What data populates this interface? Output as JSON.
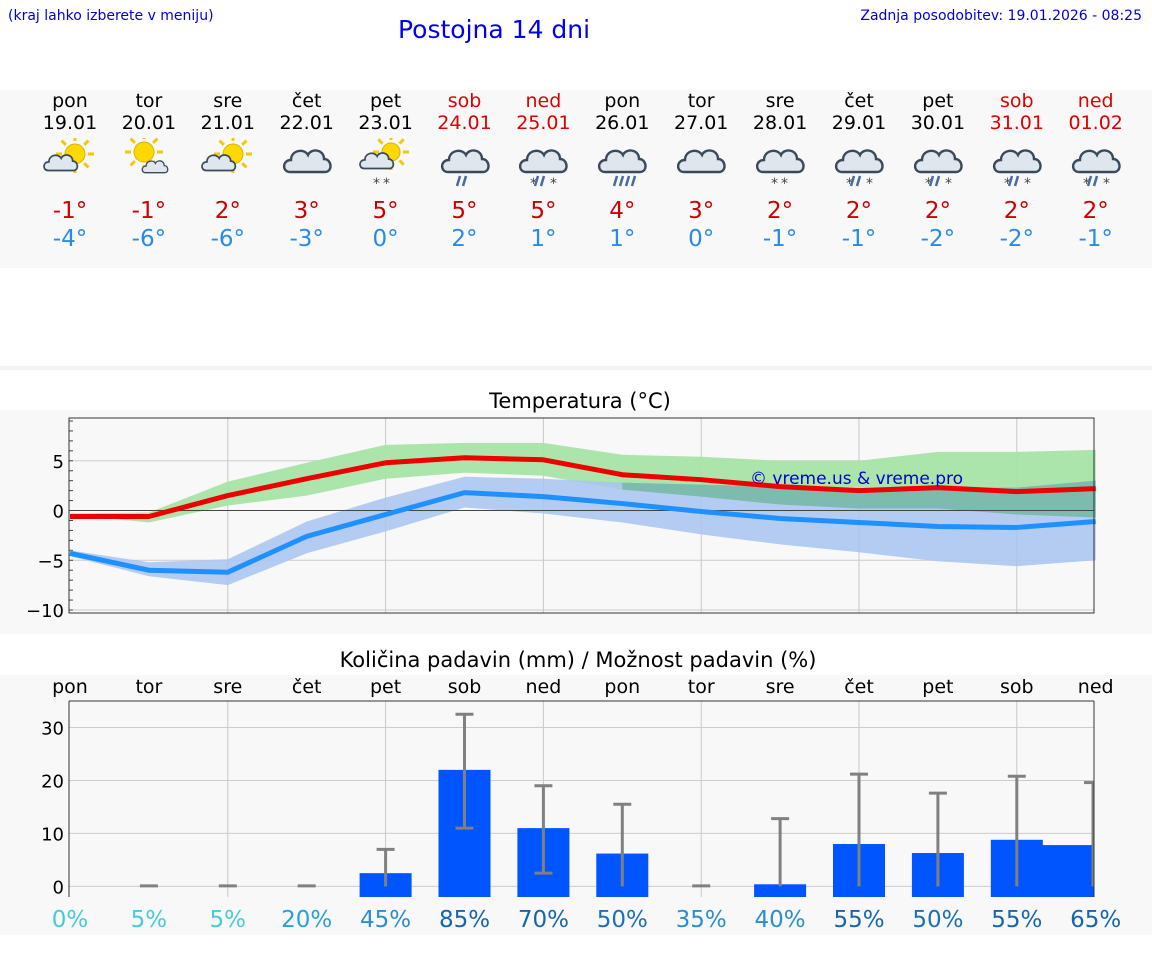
{
  "header": {
    "hint": "(kraj lahko izberete v meniju)",
    "title": "Postojna 14 dni",
    "updated": "Zadnja posodobitev: 19.01.2026 - 08:25"
  },
  "days": [
    {
      "name": "pon",
      "date": "19.01",
      "weekend": false,
      "icon": "sun-cloud-icon",
      "tmax": "-1°",
      "tmin": "-4°"
    },
    {
      "name": "tor",
      "date": "20.01",
      "weekend": false,
      "icon": "sun-small-cloud-icon",
      "tmax": "-1°",
      "tmin": "-6°"
    },
    {
      "name": "sre",
      "date": "21.01",
      "weekend": false,
      "icon": "sun-cloud-icon",
      "tmax": "2°",
      "tmin": "-6°"
    },
    {
      "name": "čet",
      "date": "22.01",
      "weekend": false,
      "icon": "cloudy-icon",
      "tmax": "3°",
      "tmin": "-3°"
    },
    {
      "name": "pet",
      "date": "23.01",
      "weekend": false,
      "icon": "sun-cloud-snow-icon",
      "tmax": "5°",
      "tmin": "0°"
    },
    {
      "name": "sob",
      "date": "24.01",
      "weekend": true,
      "icon": "cloud-rain-icon",
      "tmax": "5°",
      "tmin": "2°"
    },
    {
      "name": "ned",
      "date": "25.01",
      "weekend": true,
      "icon": "cloud-sleet-icon",
      "tmax": "5°",
      "tmin": "1°"
    },
    {
      "name": "pon",
      "date": "26.01",
      "weekend": false,
      "icon": "cloud-heavy-rain-icon",
      "tmax": "4°",
      "tmin": "1°"
    },
    {
      "name": "tor",
      "date": "27.01",
      "weekend": false,
      "icon": "cloudy-icon",
      "tmax": "3°",
      "tmin": "0°"
    },
    {
      "name": "sre",
      "date": "28.01",
      "weekend": false,
      "icon": "cloud-snow-icon",
      "tmax": "2°",
      "tmin": "-1°"
    },
    {
      "name": "čet",
      "date": "29.01",
      "weekend": false,
      "icon": "cloud-sleet-icon",
      "tmax": "2°",
      "tmin": "-1°"
    },
    {
      "name": "pet",
      "date": "30.01",
      "weekend": false,
      "icon": "cloud-sleet-icon",
      "tmax": "2°",
      "tmin": "-2°"
    },
    {
      "name": "sob",
      "date": "31.01",
      "weekend": true,
      "icon": "cloud-sleet-icon",
      "tmax": "2°",
      "tmin": "-2°"
    },
    {
      "name": "ned",
      "date": "01.02",
      "weekend": true,
      "icon": "cloud-sleet-icon",
      "tmax": "2°",
      "tmin": "-1°"
    }
  ],
  "colors": {
    "max_line": "#ee0000",
    "min_line": "#1e90ff",
    "max_band": "#a8e4a8",
    "min_band": "#a8c4f0",
    "overlap_band": "#70b8a0",
    "bar": "#0055ff",
    "error": "#808080",
    "title": "#0000ee",
    "watermark": "#0000cc"
  },
  "chart_data": [
    {
      "type": "line",
      "title": "Temperatura (°C)",
      "xlabel": "",
      "ylabel": "",
      "categories": [
        "19.01",
        "20.01",
        "21.01",
        "22.01",
        "23.01",
        "24.01",
        "25.01",
        "26.01",
        "27.01",
        "28.01",
        "29.01",
        "30.01",
        "31.01",
        "01.02"
      ],
      "ylim": [
        -10.3,
        9.3
      ],
      "yticks": [
        5,
        0,
        -5,
        -10
      ],
      "ytick_labels": [
        "5",
        "0",
        "−5",
        "−10"
      ],
      "grid": true,
      "watermark": "© vreme.us & vreme.pro",
      "series": [
        {
          "name": "max",
          "values": [
            -0.6,
            -0.6,
            1.5,
            3.2,
            4.8,
            5.3,
            5.1,
            3.6,
            3.1,
            2.4,
            2.0,
            2.3,
            1.9,
            2.2
          ],
          "band_low": [
            -0.4,
            -1.2,
            0.5,
            1.5,
            3.2,
            3.8,
            3.5,
            2.1,
            1.4,
            0.6,
            0.2,
            0.2,
            -0.4,
            -0.7
          ],
          "band_high": [
            -0.3,
            -0.2,
            2.9,
            4.8,
            6.6,
            6.8,
            6.8,
            5.6,
            5.4,
            5.0,
            5.0,
            5.9,
            5.9,
            6.1
          ]
        },
        {
          "name": "min",
          "values": [
            -4.3,
            -6.0,
            -6.2,
            -2.6,
            -0.4,
            1.8,
            1.4,
            0.7,
            -0.1,
            -0.8,
            -1.2,
            -1.6,
            -1.7,
            -1.1
          ],
          "band_low": [
            -4.6,
            -6.6,
            -7.5,
            -4.3,
            -2.1,
            0.3,
            -0.3,
            -1.2,
            -2.4,
            -3.4,
            -4.2,
            -5.1,
            -5.6,
            -5.0
          ],
          "band_high": [
            -4.0,
            -5.2,
            -4.9,
            -1.1,
            1.3,
            3.4,
            3.2,
            2.8,
            2.6,
            2.4,
            2.2,
            2.3,
            2.3,
            3.0
          ]
        }
      ]
    },
    {
      "type": "bar",
      "title": "Količina padavin (mm) / Možnost padavin (%)",
      "xlabel": "",
      "ylabel": "",
      "categories": [
        "pon",
        "tor",
        "sre",
        "čet",
        "pet",
        "sob",
        "ned",
        "pon",
        "tor",
        "sre",
        "čet",
        "pet",
        "sob",
        "ned"
      ],
      "ylim": [
        -2,
        35
      ],
      "yticks": [
        30,
        20,
        10,
        0
      ],
      "ytick_labels": [
        "30",
        "20",
        "10",
        "0"
      ],
      "grid": true,
      "values": [
        0,
        0,
        0,
        0,
        2.5,
        22.0,
        11.0,
        6.2,
        0,
        0.4,
        8.0,
        6.3,
        8.8,
        7.8
      ],
      "error_low": [
        0,
        0,
        0,
        0,
        0,
        11.0,
        2.5,
        0,
        0,
        0,
        0,
        0,
        0,
        0
      ],
      "error_high": [
        0,
        0.1,
        0.1,
        0.1,
        7.0,
        32.5,
        19.0,
        15.5,
        0.1,
        12.8,
        21.2,
        17.6,
        20.8,
        19.6
      ],
      "probabilities": [
        "0%",
        "5%",
        "5%",
        "20%",
        "45%",
        "85%",
        "70%",
        "50%",
        "35%",
        "40%",
        "55%",
        "50%",
        "55%",
        "65%"
      ],
      "probability_colors": [
        "#44ccdd",
        "#44ccdd",
        "#44ccdd",
        "#2aa0d8",
        "#2a8ed0",
        "#1565b0",
        "#1565b0",
        "#1a70bb",
        "#2a8ed0",
        "#2a8ed0",
        "#1565b0",
        "#1a70bb",
        "#1565b0",
        "#1565b0"
      ]
    }
  ]
}
